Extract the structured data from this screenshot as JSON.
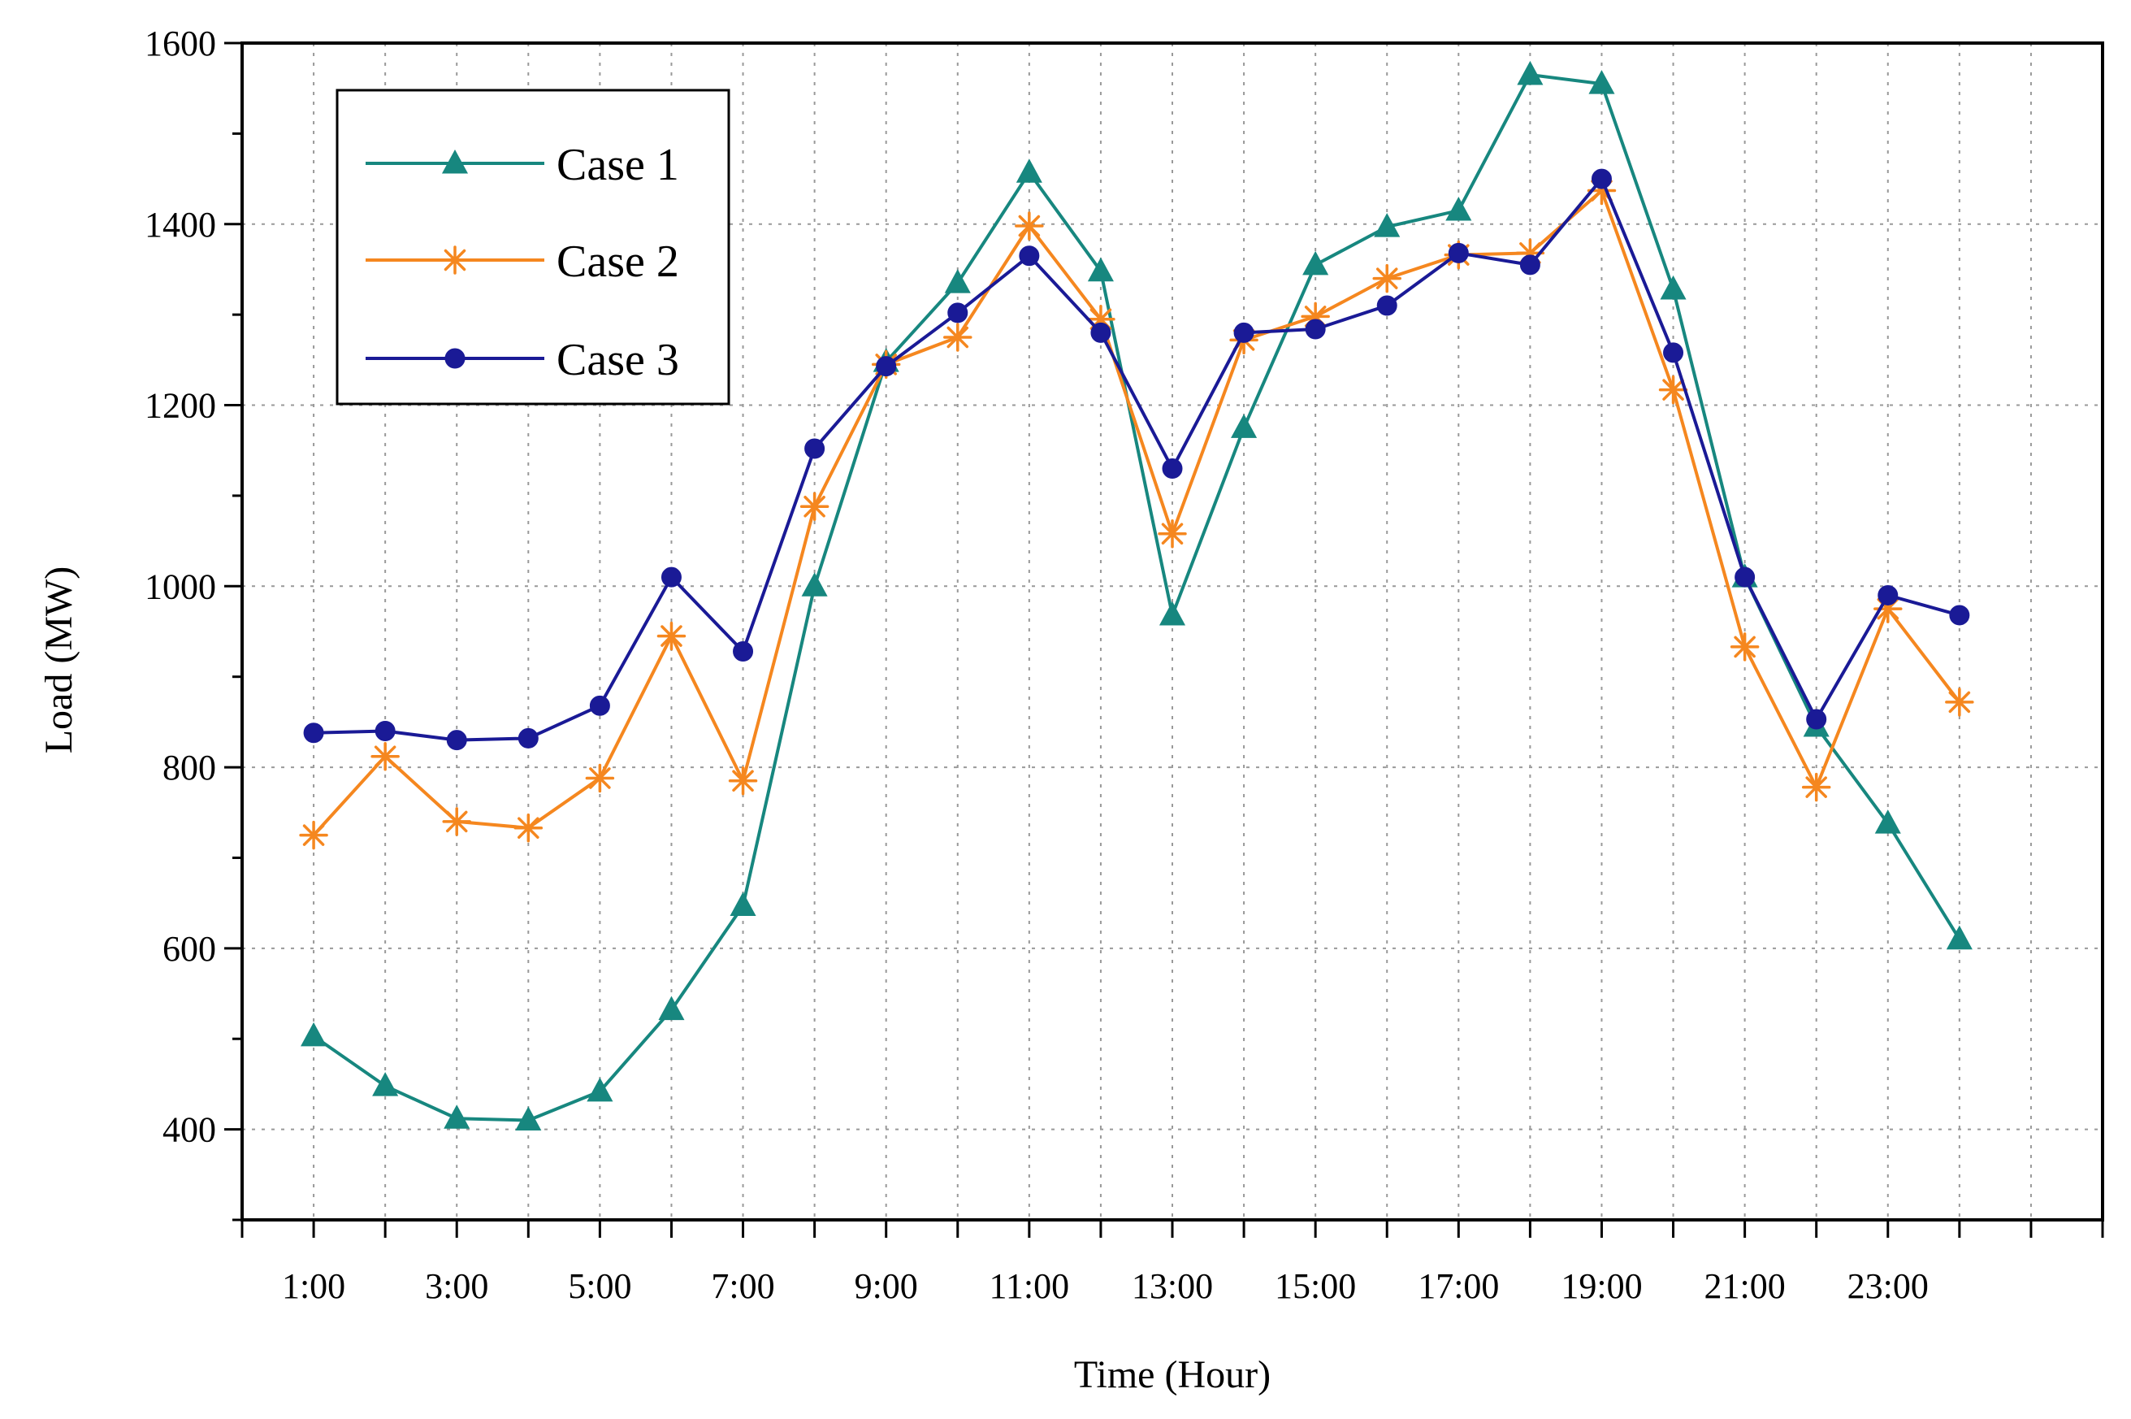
{
  "chart_data": {
    "type": "line",
    "title": "",
    "xlabel": "Time (Hour)",
    "ylabel": "Load (MW)",
    "ylim": [
      300,
      1600
    ],
    "yticks": [
      400,
      600,
      800,
      1000,
      1200,
      1400,
      1600
    ],
    "x": [
      1,
      2,
      3,
      4,
      5,
      6,
      7,
      8,
      9,
      10,
      11,
      12,
      13,
      14,
      15,
      16,
      17,
      18,
      19,
      20,
      21,
      22,
      23,
      24
    ],
    "xlim": [
      0,
      26
    ],
    "xtick_labels": [
      {
        "x": 1,
        "label": "1:00"
      },
      {
        "x": 3,
        "label": "3:00"
      },
      {
        "x": 5,
        "label": "5:00"
      },
      {
        "x": 7,
        "label": "7:00"
      },
      {
        "x": 9,
        "label": "9:00"
      },
      {
        "x": 11,
        "label": "11:00"
      },
      {
        "x": 13,
        "label": "13:00"
      },
      {
        "x": 15,
        "label": "15:00"
      },
      {
        "x": 17,
        "label": "17:00"
      },
      {
        "x": 19,
        "label": "19:00"
      },
      {
        "x": 21,
        "label": "21:00"
      },
      {
        "x": 23,
        "label": "23:00"
      }
    ],
    "grid": true,
    "legend_position": "top-left",
    "series": [
      {
        "name": "Case 1",
        "color": "#17877f",
        "marker": "triangle",
        "values": [
          503,
          448,
          412,
          410,
          442,
          532,
          647,
          1000,
          1248,
          1335,
          1457,
          1348,
          968,
          1175,
          1355,
          1397,
          1415,
          1565,
          1555,
          1328,
          1010,
          845,
          738,
          610
        ]
      },
      {
        "name": "Case 2",
        "color": "#f5871f",
        "marker": "star",
        "values": [
          725,
          812,
          740,
          733,
          788,
          945,
          785,
          1088,
          1245,
          1275,
          1398,
          1295,
          1058,
          1272,
          1298,
          1340,
          1366,
          1368,
          1437,
          1217,
          933,
          778,
          975,
          872
        ]
      },
      {
        "name": "Case 3",
        "color": "#1a1a96",
        "marker": "circle",
        "values": [
          838,
          840,
          830,
          832,
          868,
          1010,
          928,
          1152,
          1243,
          1302,
          1365,
          1280,
          1130,
          1280,
          1284,
          1310,
          1368,
          1355,
          1450,
          1258,
          1010,
          853,
          990,
          968
        ]
      }
    ]
  }
}
